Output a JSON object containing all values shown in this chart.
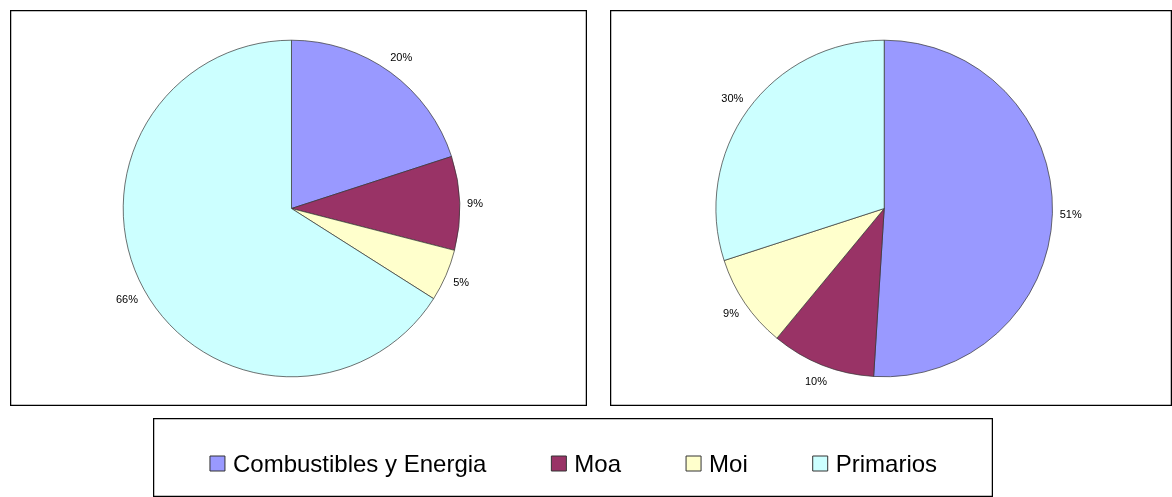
{
  "chart_data": [
    {
      "type": "pie",
      "categories": [
        "Combustibles y Energia",
        "Moa",
        "Moi",
        "Primarios"
      ],
      "values": [
        20,
        9,
        5,
        66
      ],
      "colors": [
        "#9999ff",
        "#993366",
        "#ffffcc",
        "#ccffff"
      ],
      "value_labels": [
        "20%",
        "9%",
        "5%",
        "66%"
      ],
      "legend": "bottom"
    },
    {
      "type": "pie",
      "categories": [
        null,
        null,
        null,
        null
      ],
      "values": [
        51,
        10,
        9,
        30
      ],
      "colors": [
        "#9999ff",
        "#993366",
        "#ffffcc",
        "#ccffff"
      ],
      "value_labels": [
        "51%",
        "10%",
        "9%",
        "30%"
      ]
    }
  ]
}
